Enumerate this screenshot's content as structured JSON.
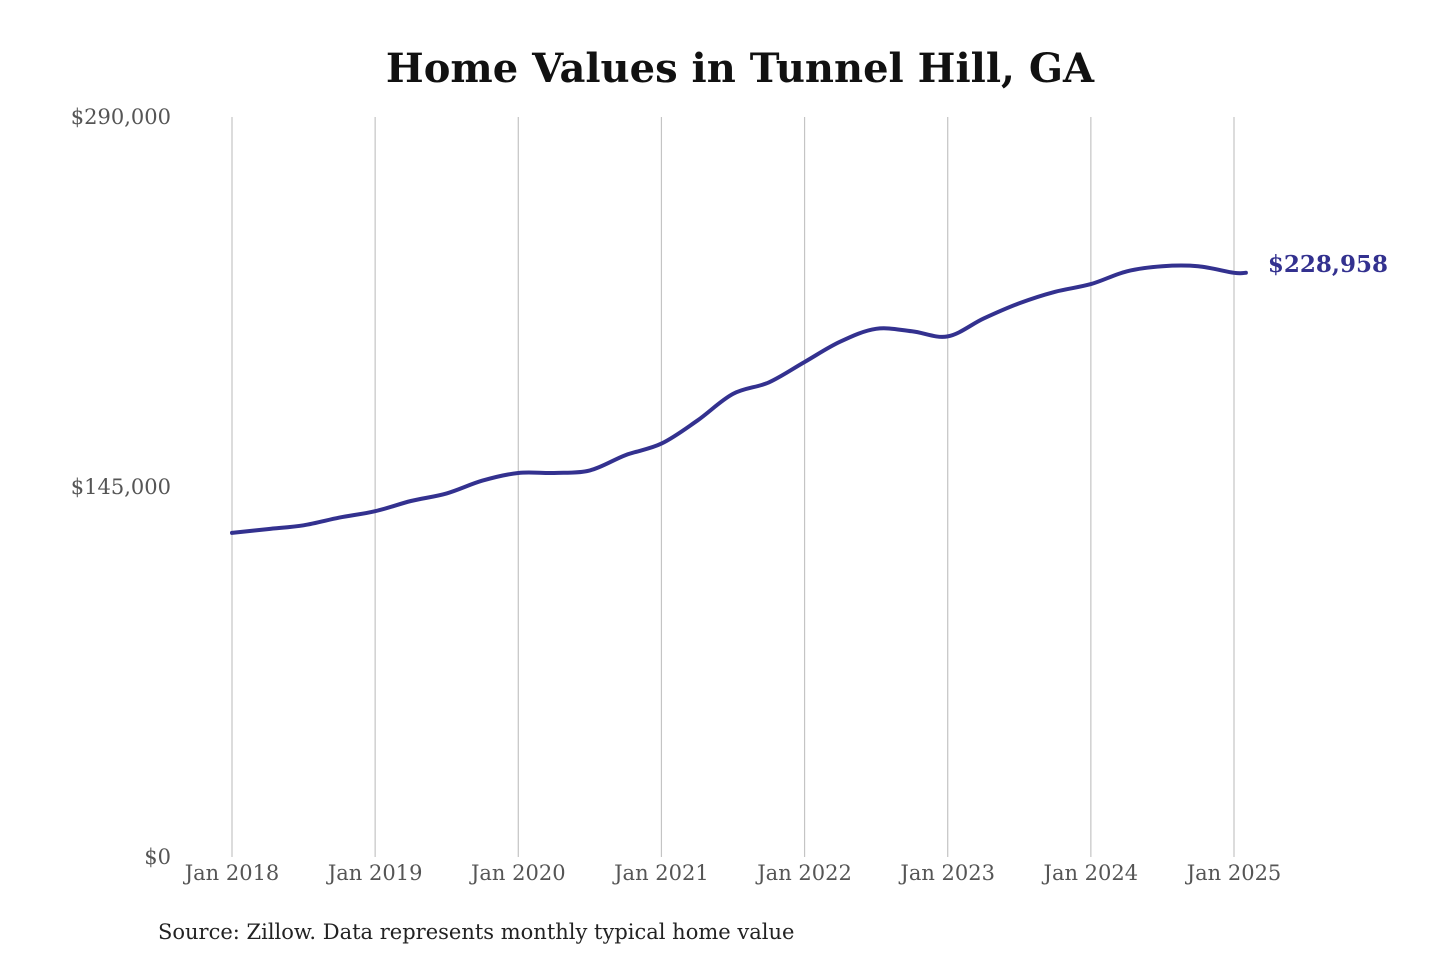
{
  "chart_data": {
    "type": "line",
    "title": "Home Values in Tunnel Hill, GA",
    "xlabel": "",
    "ylabel": "",
    "source": "Source: Zillow. Data represents monthly typical home value",
    "ylim": [
      0,
      290000
    ],
    "y_ticks": [
      0,
      145000,
      290000
    ],
    "y_tick_labels": [
      "$0",
      "$145,000",
      "$290,000"
    ],
    "x_ticks": [
      "2018-01",
      "2019-01",
      "2020-01",
      "2021-01",
      "2022-01",
      "2023-01",
      "2024-01",
      "2025-01"
    ],
    "x_tick_labels": [
      "Jan 2018",
      "Jan 2019",
      "Jan 2020",
      "Jan 2021",
      "Jan 2022",
      "Jan 2023",
      "Jan 2024",
      "Jan 2025"
    ],
    "grid": "vertical",
    "line_color": "#33318f",
    "end_label": "$228,958",
    "series": [
      {
        "x": [
          "2018-01",
          "2018-04",
          "2018-07",
          "2018-10",
          "2019-01",
          "2019-04",
          "2019-07",
          "2019-10",
          "2020-01",
          "2020-04",
          "2020-07",
          "2020-10",
          "2021-01",
          "2021-04",
          "2021-07",
          "2021-10",
          "2022-01",
          "2022-04",
          "2022-07",
          "2022-10",
          "2023-01",
          "2023-04",
          "2023-07",
          "2023-10",
          "2024-01",
          "2024-04",
          "2024-07",
          "2024-10",
          "2025-01",
          "2025-02"
        ],
        "y": [
          127000,
          128500,
          130000,
          133000,
          135500,
          139500,
          142500,
          147500,
          150500,
          150500,
          151500,
          157500,
          162000,
          171000,
          181500,
          186000,
          194000,
          202000,
          207000,
          206000,
          204000,
          211000,
          217000,
          221500,
          224500,
          229500,
          231500,
          231500,
          228958,
          228958
        ]
      }
    ]
  }
}
